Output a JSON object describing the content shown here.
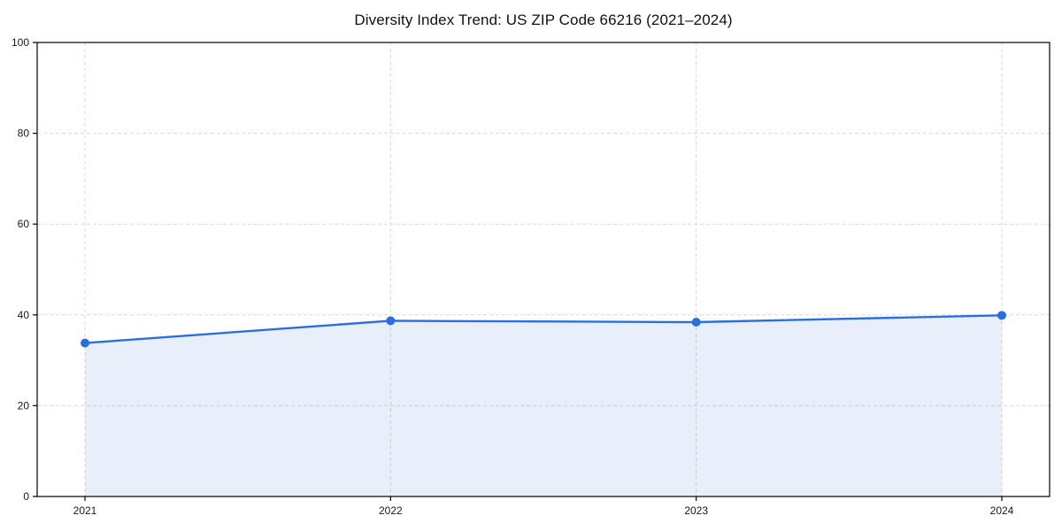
{
  "chart_data": {
    "type": "line",
    "title": "Diversity Index Trend: US ZIP Code 66216 (2021–2024)",
    "x": [
      2021,
      2022,
      2023,
      2024
    ],
    "xticks": [
      "2021",
      "2022",
      "2023",
      "2024"
    ],
    "series": [
      {
        "name": "Diversity Index",
        "values": [
          33.8,
          38.7,
          38.4,
          39.9
        ]
      }
    ],
    "xlabel": "",
    "ylabel": "",
    "ylim": [
      0,
      100
    ],
    "yticks": [
      0,
      20,
      40,
      60,
      80,
      100
    ],
    "grid": true,
    "grid_style": "dashed",
    "legend": false,
    "colors": {
      "line": "#2a6fdf",
      "marker": "#2a6fdf",
      "fill": "#2a6fdf",
      "grid": "#d9d9d9",
      "spine": "#000000",
      "tick_label": "#1a1a1a"
    },
    "fill_opacity": 0.11,
    "marker": "circle"
  }
}
